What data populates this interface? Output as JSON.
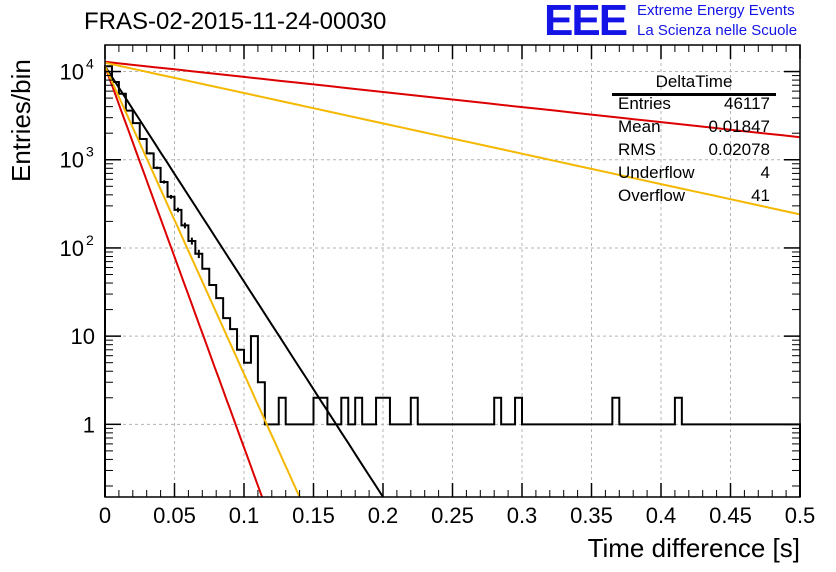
{
  "chart_data": {
    "type": "line",
    "title": "FRAS-02-2015-11-24-00030",
    "xlabel": "Time difference [s]",
    "ylabel": "Entries/bin",
    "xlim": [
      0,
      0.5
    ],
    "ylim": [
      0.15,
      20000
    ],
    "y_scale": "log",
    "grid": true,
    "x_ticks": [
      "0",
      "0.05",
      "0.1",
      "0.15",
      "0.2",
      "0.25",
      "0.3",
      "0.35",
      "0.4",
      "0.45",
      "0.5"
    ],
    "y_ticks": [
      {
        "value": 1,
        "label": "1"
      },
      {
        "value": 10,
        "label": "10"
      },
      {
        "value": 100,
        "label": "10",
        "exp": "2"
      },
      {
        "value": 1000,
        "label": "10",
        "exp": "3"
      },
      {
        "value": 10000,
        "label": "10",
        "exp": "4"
      }
    ],
    "histogram": {
      "name": "DeltaTime",
      "bin_width": 0.005,
      "values": [
        11500,
        7600,
        5600,
        3600,
        2600,
        1720,
        1180,
        810,
        560,
        380,
        270,
        180,
        120,
        86,
        58,
        38,
        27,
        16,
        12,
        7,
        5,
        10,
        3,
        1,
        1,
        2,
        1,
        1,
        1,
        1,
        2,
        2,
        1,
        1,
        2,
        1,
        2,
        1,
        1,
        2,
        2,
        1,
        1,
        1,
        2,
        1,
        1,
        1,
        1,
        1,
        1,
        1,
        1,
        1,
        1,
        1,
        2,
        1,
        1,
        2,
        1,
        1,
        1,
        1,
        1,
        1,
        1,
        1,
        1,
        1,
        1,
        1,
        1,
        2,
        1,
        1,
        1,
        1,
        1,
        1,
        1,
        1,
        2,
        1,
        1,
        1,
        1,
        1,
        1,
        1,
        1,
        1,
        1,
        1,
        1,
        1,
        1,
        1,
        1,
        1
      ]
    },
    "fit_curves": [
      {
        "color": "#000000",
        "x": [
          0,
          0.2
        ],
        "y": [
          11500,
          0.15
        ]
      },
      {
        "color": "#dd0000",
        "x": [
          0,
          0.113
        ],
        "y": [
          11500,
          0.15
        ]
      },
      {
        "color": "#f5b800",
        "x": [
          0,
          0.14
        ],
        "y": [
          11500,
          0.15
        ]
      },
      {
        "color": "#dd0000",
        "x": [
          0,
          0.5
        ],
        "y": [
          12900,
          1800
        ]
      },
      {
        "color": "#f5b800",
        "x": [
          0,
          0.5
        ],
        "y": [
          12600,
          240
        ]
      }
    ],
    "stats": {
      "title": "DeltaTime",
      "rows": [
        {
          "key": "Entries",
          "value": "46117"
        },
        {
          "key": "Mean",
          "value": "0.01847"
        },
        {
          "key": "RMS",
          "value": "0.02078"
        },
        {
          "key": "Underflow",
          "value": "4"
        },
        {
          "key": "Overflow",
          "value": "41"
        }
      ]
    }
  },
  "logo": {
    "mark": "EEE",
    "line1": "Extreme Energy Events",
    "line2": "La Scienza nelle Scuole"
  }
}
